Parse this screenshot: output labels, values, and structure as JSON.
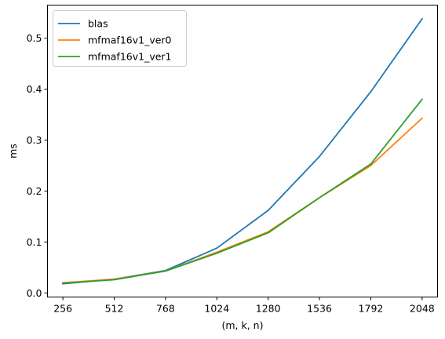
{
  "chart_data": {
    "type": "line",
    "xlabel": "(m, k, n)",
    "ylabel": "ms",
    "x": [
      256,
      512,
      768,
      1024,
      1280,
      1536,
      1792,
      2048
    ],
    "x_tick_labels": [
      "256",
      "512",
      "768",
      "1024",
      "1280",
      "1536",
      "1792",
      "2048"
    ],
    "y_ticks": [
      0.0,
      0.1,
      0.2,
      0.3,
      0.4,
      0.5
    ],
    "y_tick_labels": [
      "0.0",
      "0.1",
      "0.2",
      "0.3",
      "0.4",
      "0.5"
    ],
    "xlim": [
      179,
      2125
    ],
    "ylim": [
      -0.008,
      0.565
    ],
    "grid": false,
    "legend_position": "top-left",
    "series": [
      {
        "name": "blas",
        "color": "#1f77b4",
        "values": [
          0.018,
          0.027,
          0.044,
          0.088,
          0.162,
          0.268,
          0.395,
          0.538
        ]
      },
      {
        "name": "mfmaf16v1_ver0",
        "color": "#ff7f0e",
        "values": [
          0.02,
          0.027,
          0.043,
          0.08,
          0.12,
          0.187,
          0.25,
          0.343
        ]
      },
      {
        "name": "mfmaf16v1_ver1",
        "color": "#2ca02c",
        "values": [
          0.019,
          0.026,
          0.043,
          0.078,
          0.118,
          0.187,
          0.253,
          0.38
        ]
      }
    ]
  }
}
